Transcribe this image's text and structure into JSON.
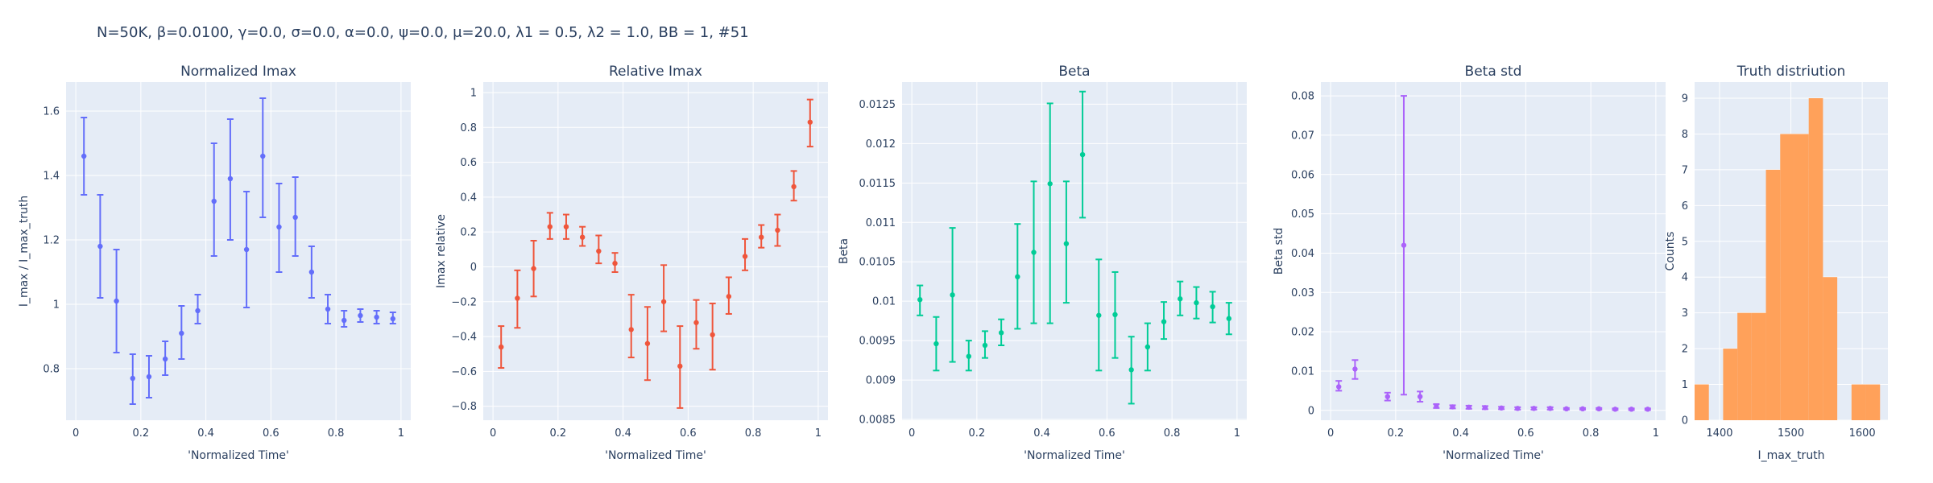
{
  "figure": {
    "title": "N=50K, β=0.0100, γ=0.0, σ=0.0,  α=0.0, ψ=0.0, μ=20.0, λ1 = 0.5, λ2 = 1.0, BB = 1, #51"
  },
  "chart_data": [
    {
      "type": "scatter",
      "title": "Normalized Imax",
      "xlabel": "'Normalized Time'",
      "ylabel": "I_max / I_max_truth",
      "color": "#636efa",
      "xlim": [
        -0.03,
        1.03
      ],
      "ylim": [
        0.64,
        1.69
      ],
      "xticks": [
        0,
        0.2,
        0.4,
        0.6,
        0.8,
        1
      ],
      "xtick_labels": [
        "0",
        "0.2",
        "0.4",
        "0.6",
        "0.8",
        "1"
      ],
      "yticks": [
        0.8,
        1.0,
        1.2,
        1.4,
        1.6
      ],
      "ytick_labels": [
        "0.8",
        "1",
        "1.2",
        "1.4",
        "1.6"
      ],
      "x": [
        0.025,
        0.075,
        0.125,
        0.175,
        0.225,
        0.275,
        0.325,
        0.375,
        0.425,
        0.475,
        0.525,
        0.575,
        0.625,
        0.675,
        0.725,
        0.775,
        0.825,
        0.875,
        0.925,
        0.975
      ],
      "y": [
        1.46,
        1.18,
        1.01,
        0.77,
        0.775,
        0.83,
        0.91,
        0.98,
        1.32,
        1.39,
        1.17,
        1.46,
        1.24,
        1.27,
        1.1,
        0.985,
        0.95,
        0.965,
        0.96,
        0.955
      ],
      "err_low": [
        1.34,
        1.02,
        0.85,
        0.69,
        0.71,
        0.78,
        0.83,
        0.94,
        1.15,
        1.2,
        0.99,
        1.27,
        1.1,
        1.15,
        1.02,
        0.94,
        0.93,
        0.945,
        0.94,
        0.94
      ],
      "err_high": [
        1.58,
        1.34,
        1.17,
        0.845,
        0.84,
        0.885,
        0.995,
        1.03,
        1.5,
        1.575,
        1.35,
        1.64,
        1.375,
        1.395,
        1.18,
        1.03,
        0.98,
        0.985,
        0.98,
        0.975
      ]
    },
    {
      "type": "scatter",
      "title": "Relative Imax",
      "xlabel": "'Normalized Time'",
      "ylabel": "Imax relative",
      "color": "#EF553B",
      "xlim": [
        -0.03,
        1.03
      ],
      "ylim": [
        -0.88,
        1.06
      ],
      "xticks": [
        0,
        0.2,
        0.4,
        0.6,
        0.8,
        1
      ],
      "xtick_labels": [
        "0",
        "0.2",
        "0.4",
        "0.6",
        "0.8",
        "1"
      ],
      "yticks": [
        -0.8,
        -0.6,
        -0.4,
        -0.2,
        0,
        0.2,
        0.4,
        0.6,
        0.8,
        1
      ],
      "ytick_labels": [
        "−0.8",
        "−0.6",
        "−0.4",
        "−0.2",
        "0",
        "0.2",
        "0.4",
        "0.6",
        "0.8",
        "1"
      ],
      "x": [
        0.025,
        0.075,
        0.125,
        0.175,
        0.225,
        0.275,
        0.325,
        0.375,
        0.425,
        0.475,
        0.525,
        0.575,
        0.625,
        0.675,
        0.725,
        0.775,
        0.825,
        0.875,
        0.925,
        0.975
      ],
      "y": [
        -0.46,
        -0.18,
        -0.01,
        0.23,
        0.23,
        0.17,
        0.09,
        0.02,
        -0.36,
        -0.44,
        -0.2,
        -0.57,
        -0.32,
        -0.39,
        -0.17,
        0.06,
        0.17,
        0.21,
        0.46,
        0.83
      ],
      "err_low": [
        -0.58,
        -0.35,
        -0.17,
        0.16,
        0.16,
        0.12,
        0.02,
        -0.03,
        -0.52,
        -0.65,
        -0.37,
        -0.81,
        -0.47,
        -0.59,
        -0.27,
        -0.02,
        0.11,
        0.12,
        0.38,
        0.69
      ],
      "err_high": [
        -0.34,
        -0.02,
        0.15,
        0.31,
        0.3,
        0.23,
        0.18,
        0.08,
        -0.16,
        -0.23,
        0.01,
        -0.34,
        -0.19,
        -0.21,
        -0.06,
        0.16,
        0.24,
        0.3,
        0.55,
        0.96
      ]
    },
    {
      "type": "scatter",
      "title": "Beta",
      "xlabel": "'Normalized Time'",
      "ylabel": "Beta",
      "color": "#00cc96",
      "xlim": [
        -0.03,
        1.03
      ],
      "ylim": [
        0.00849,
        0.01278
      ],
      "xticks": [
        0,
        0.2,
        0.4,
        0.6,
        0.8,
        1
      ],
      "xtick_labels": [
        "0",
        "0.2",
        "0.4",
        "0.6",
        "0.8",
        "1"
      ],
      "yticks": [
        0.0085,
        0.009,
        0.0095,
        0.01,
        0.0105,
        0.011,
        0.0115,
        0.012,
        0.0125
      ],
      "ytick_labels": [
        "0.0085",
        "0.009",
        "0.0095",
        "0.01",
        "0.0105",
        "0.011",
        "0.0115",
        "0.012",
        "0.0125"
      ],
      "x": [
        0.025,
        0.075,
        0.125,
        0.175,
        0.225,
        0.275,
        0.325,
        0.375,
        0.425,
        0.475,
        0.525,
        0.575,
        0.625,
        0.675,
        0.725,
        0.775,
        0.825,
        0.875,
        0.925,
        0.975
      ],
      "y": [
        0.01002,
        0.00946,
        0.01008,
        0.0093,
        0.00944,
        0.0096,
        0.01031,
        0.01062,
        0.01149,
        0.01073,
        0.01186,
        0.00982,
        0.00983,
        0.00913,
        0.00942,
        0.00974,
        0.01003,
        0.00998,
        0.00993,
        0.00978
      ],
      "err_low": [
        0.00982,
        0.00912,
        0.00923,
        0.00912,
        0.00928,
        0.00944,
        0.00965,
        0.00972,
        0.00972,
        0.00998,
        0.01106,
        0.00912,
        0.00928,
        0.0087,
        0.00912,
        0.00952,
        0.00982,
        0.00978,
        0.00973,
        0.00958
      ],
      "err_high": [
        0.0102,
        0.0098,
        0.01093,
        0.0095,
        0.00962,
        0.00977,
        0.01098,
        0.01152,
        0.01251,
        0.01152,
        0.01266,
        0.01053,
        0.01037,
        0.00955,
        0.00972,
        0.00999,
        0.01025,
        0.01018,
        0.01012,
        0.00998
      ]
    },
    {
      "type": "scatter",
      "title": "Beta std",
      "xlabel": "'Normalized Time'",
      "ylabel": "Beta std",
      "color": "#ab63fa",
      "xlim": [
        -0.03,
        1.03
      ],
      "ylim": [
        -0.0025,
        0.0835
      ],
      "xticks": [
        0,
        0.2,
        0.4,
        0.6,
        0.8,
        1
      ],
      "xtick_labels": [
        "0",
        "0.2",
        "0.4",
        "0.6",
        "0.8",
        "1"
      ],
      "yticks": [
        0,
        0.01,
        0.02,
        0.03,
        0.04,
        0.05,
        0.06,
        0.07,
        0.08
      ],
      "ytick_labels": [
        "0",
        "0.01",
        "0.02",
        "0.03",
        "0.04",
        "0.05",
        "0.06",
        "0.07",
        "0.08"
      ],
      "x": [
        0.025,
        0.075,
        0.175,
        0.225,
        0.275,
        0.325,
        0.375,
        0.425,
        0.475,
        0.525,
        0.575,
        0.625,
        0.675,
        0.725,
        0.775,
        0.825,
        0.875,
        0.925,
        0.975
      ],
      "y": [
        0.006,
        0.0105,
        0.0035,
        0.042,
        0.0035,
        0.0011,
        0.0009,
        0.0008,
        0.0007,
        0.0006,
        0.0005,
        0.0005,
        0.0005,
        0.0004,
        0.0004,
        0.0004,
        0.0003,
        0.0003,
        0.0003
      ],
      "err_low": [
        0.005,
        0.008,
        0.0025,
        0.004,
        0.0022,
        0.0006,
        0.0005,
        0.0004,
        0.0003,
        0.0003,
        0.0002,
        0.0002,
        0.0002,
        0.0002,
        0.0002,
        0.0002,
        0.0001,
        0.0001,
        0.0001
      ],
      "err_high": [
        0.0075,
        0.0128,
        0.0045,
        0.08,
        0.0048,
        0.0016,
        0.0013,
        0.0012,
        0.0011,
        0.0009,
        0.0008,
        0.0008,
        0.0008,
        0.0006,
        0.0006,
        0.0006,
        0.0005,
        0.0005,
        0.0005
      ]
    },
    {
      "type": "bar",
      "title": "Truth distriution",
      "xlabel": "I_max_truth",
      "ylabel": "Counts",
      "color": "#FFA15A",
      "xlim": [
        1365,
        1636
      ],
      "ylim": [
        0,
        9.45
      ],
      "xticks": [
        1400,
        1500,
        1600
      ],
      "xtick_labels": [
        "1400",
        "1500",
        "1600"
      ],
      "yticks": [
        0,
        1,
        2,
        3,
        4,
        5,
        6,
        7,
        8,
        9
      ],
      "ytick_labels": [
        "0",
        "1",
        "2",
        "3",
        "4",
        "5",
        "6",
        "7",
        "8",
        "9"
      ],
      "bin_edges": [
        1365,
        1385,
        1405,
        1425,
        1445,
        1465,
        1485,
        1505,
        1525,
        1545,
        1565,
        1585,
        1605,
        1625
      ],
      "values": [
        1,
        0,
        2,
        3,
        3,
        7,
        8,
        8,
        9,
        4,
        0,
        1,
        1
      ]
    }
  ]
}
